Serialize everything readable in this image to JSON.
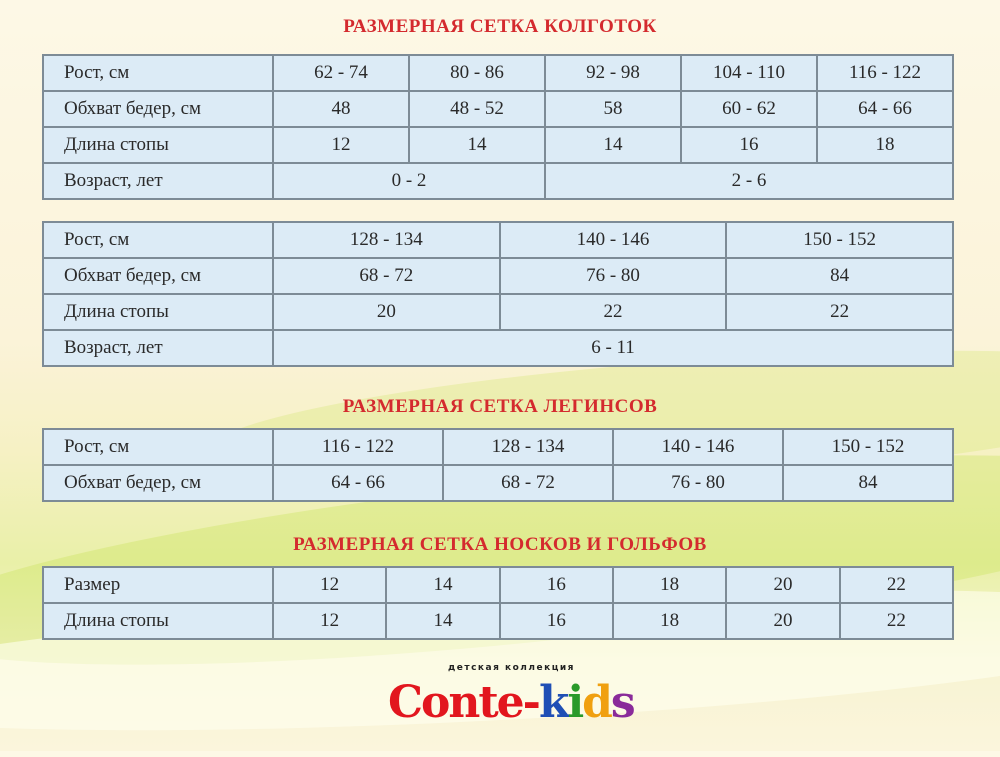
{
  "tights": {
    "title": "РАЗМЕРНАЯ СЕТКА КОЛГОТОК",
    "t1": {
      "rows": [
        {
          "label": "Рост, см",
          "cells": [
            "62 - 74",
            "80 - 86",
            "92 - 98",
            "104 - 110",
            "116 - 122"
          ]
        },
        {
          "label": "Обхват бедер, см",
          "cells": [
            "48",
            "48 - 52",
            "58",
            "60 - 62",
            "64 - 66"
          ]
        },
        {
          "label": "Длина стопы",
          "cells": [
            "12",
            "14",
            "14",
            "16",
            "18"
          ]
        },
        {
          "label": "Возраст, лет",
          "cells": [
            "0 - 2",
            "2 - 6"
          ]
        }
      ]
    },
    "t2": {
      "rows": [
        {
          "label": "Рост, см",
          "cells": [
            "128 - 134",
            "140 - 146",
            "150 - 152"
          ]
        },
        {
          "label": "Обхват бедер, см",
          "cells": [
            "68 - 72",
            "76 - 80",
            "84"
          ]
        },
        {
          "label": "Длина стопы",
          "cells": [
            "20",
            "22",
            "22"
          ]
        },
        {
          "label": "Возраст, лет",
          "cells": [
            "6 - 11"
          ]
        }
      ]
    }
  },
  "leggings": {
    "title": "РАЗМЕРНАЯ СЕТКА ЛЕГИНСОВ",
    "rows": [
      {
        "label": "Рост, см",
        "cells": [
          "116 - 122",
          "128 - 134",
          "140 - 146",
          "150 - 152"
        ]
      },
      {
        "label": "Обхват бедер, см",
        "cells": [
          "64 - 66",
          "68 - 72",
          "76 - 80",
          "84"
        ]
      }
    ]
  },
  "socks": {
    "title": "РАЗМЕРНАЯ СЕТКА НОСКОВ И ГОЛЬФОВ",
    "rows": [
      {
        "label": "Размер",
        "cells": [
          "12",
          "14",
          "16",
          "18",
          "20",
          "22"
        ]
      },
      {
        "label": "Длина стопы",
        "cells": [
          "12",
          "14",
          "16",
          "18",
          "20",
          "22"
        ]
      }
    ]
  },
  "logo": {
    "subtitle": "детская коллекция",
    "brand": "Conte-kids"
  },
  "colors": {
    "title": "#d42a2e",
    "cell": "#dcebf6",
    "border": "#7d8b96"
  }
}
